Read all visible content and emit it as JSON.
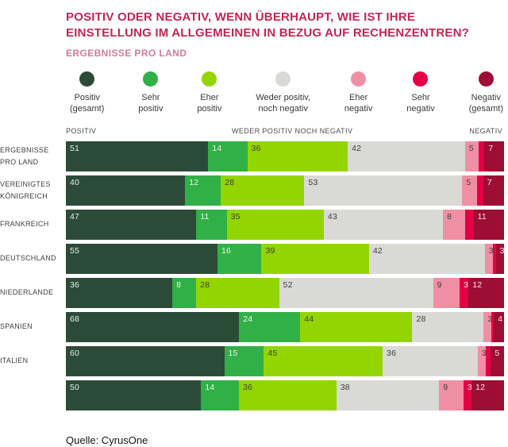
{
  "title": "POSITIV ODER NEGATIV, WENN ÜBERHAUPT, WIE IST IHRE EINSTELLUNG IM ALLGEMEINEN IN BEZUG AUF RECHENZENTREN?",
  "subtitle": "ERGEBNISSE PRO LAND",
  "source": "Quelle: CyrusOne",
  "accent_colors": {
    "title_pink": "#c42553",
    "subtitle_pink": "#d07d95"
  },
  "column_headers": {
    "left": "POSITIV",
    "middle": "WEDER POSITIV NOCH NEGATIV",
    "right": "NEGATIV"
  },
  "legend": [
    {
      "lines": [
        "Positiv",
        "(gesamt)"
      ],
      "color": "#2b4b38"
    },
    {
      "lines": [
        "Sehr",
        "positiv"
      ],
      "color": "#30b046"
    },
    {
      "lines": [
        "Eher",
        "positiv"
      ],
      "color": "#93d500"
    },
    {
      "lines": [
        "Weder positiv,",
        "noch negativ"
      ],
      "color": "#d9d9d6"
    },
    {
      "lines": [
        "Eher",
        "negativ"
      ],
      "color": "#ef8fa3"
    },
    {
      "lines": [
        "Sehr",
        "negativ"
      ],
      "color": "#e30045"
    },
    {
      "lines": [
        "Negativ",
        "(gesamt)"
      ],
      "color": "#9e0d33"
    }
  ],
  "chart_data": {
    "type": "bar",
    "orientation": "horizontal-stacked",
    "value_unit": "percent",
    "note": "Each row is normalized to full width; segment widths proportional to values. Unlabeled 'Sehr negativ' sliver values estimated as (Negativ gesamt − Eher negativ).",
    "categories": [
      "ERGEBNISSE PRO LAND",
      "VEREINIGTES KÖNIGREICH",
      "FRANKREICH",
      "DEUTSCHLAND",
      "NIEDERLANDE",
      "SPANIEN",
      "ITALIEN",
      ""
    ],
    "categories_display": [
      [
        "ERGEBNISSE",
        "PRO LAND"
      ],
      [
        "VEREINIGTES",
        "KÖNIGREICH"
      ],
      [
        "FRANKREICH"
      ],
      [
        "DEUTSCHLAND"
      ],
      [
        "NIEDERLANDE"
      ],
      [
        "SPANIEN"
      ],
      [
        "ITALIEN"
      ],
      []
    ],
    "series": [
      {
        "name": "Positiv (gesamt)",
        "color": "#2b4b38",
        "label_color": "light",
        "values": [
          51,
          40,
          47,
          55,
          36,
          68,
          60,
          50
        ],
        "labels": [
          "51",
          "40",
          "47",
          "55",
          "36",
          "68",
          "60",
          "50"
        ]
      },
      {
        "name": "Sehr positiv",
        "color": "#30b046",
        "label_color": "light",
        "values": [
          14,
          12,
          11,
          16,
          8,
          24,
          15,
          14
        ],
        "labels": [
          "14",
          "12",
          "11",
          "16",
          "8",
          "24",
          "15",
          "14"
        ]
      },
      {
        "name": "Eher positiv",
        "color": "#93d500",
        "label_color": "dark",
        "values": [
          36,
          28,
          35,
          39,
          28,
          44,
          45,
          36
        ],
        "labels": [
          "36",
          "28",
          "35",
          "39",
          "28",
          "44",
          "45",
          "36"
        ]
      },
      {
        "name": "Weder positiv, noch negativ",
        "color": "#d9d9d6",
        "label_color": "dark",
        "values": [
          42,
          53,
          43,
          42,
          52,
          28,
          36,
          38
        ],
        "labels": [
          "42",
          "53",
          "43",
          "42",
          "52",
          "28",
          "36",
          "38"
        ]
      },
      {
        "name": "Eher negativ",
        "color": "#ef8fa3",
        "label_color": "dark",
        "values": [
          5,
          5,
          8,
          3,
          9,
          3,
          3,
          9
        ],
        "labels": [
          "5",
          "5",
          "8",
          "3",
          "9",
          "3",
          "3",
          "9"
        ]
      },
      {
        "name": "Sehr negativ",
        "color": "#e30045",
        "label_color": "light",
        "values": [
          2,
          2,
          3,
          1,
          3,
          1,
          2,
          3
        ],
        "labels": [
          "",
          "",
          "",
          "",
          "3",
          "",
          "",
          "3"
        ]
      },
      {
        "name": "Negativ (gesamt)",
        "color": "#9e0d33",
        "label_color": "light",
        "values": [
          7,
          7,
          11,
          3,
          12,
          4,
          5,
          12
        ],
        "labels": [
          "7",
          "7",
          "11",
          "3",
          "12",
          "4",
          "5",
          "12"
        ]
      }
    ]
  }
}
